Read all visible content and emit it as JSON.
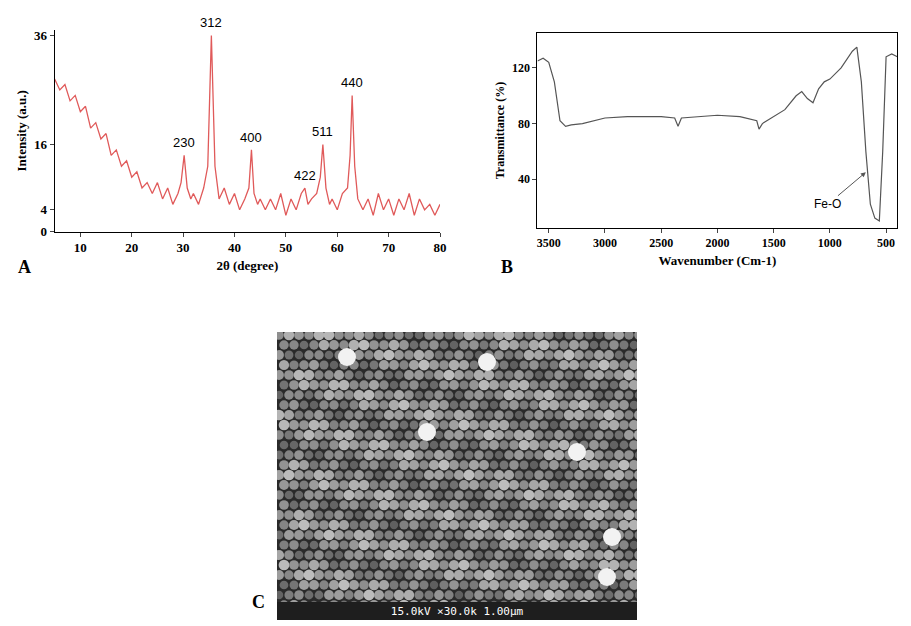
{
  "chart_data": [
    {
      "type": "line",
      "panel": "A",
      "x_label": "2θ (degree)",
      "y_label": "Intensity (a.u.)",
      "x": [
        5,
        6,
        7,
        8,
        9,
        10,
        11,
        12,
        13,
        14,
        15,
        16,
        17,
        18,
        19,
        20,
        21,
        22,
        23,
        24,
        25,
        26,
        27,
        28,
        29,
        29.6,
        30.2,
        30.8,
        31.5,
        32,
        33,
        34,
        34.8,
        35.5,
        36.2,
        37,
        38,
        39,
        40,
        41,
        42,
        42.8,
        43.3,
        43.8,
        44.5,
        45,
        46,
        47,
        48,
        49,
        50,
        51,
        52,
        53,
        53.7,
        54.3,
        55,
        56,
        56.7,
        57.2,
        57.8,
        58.5,
        59,
        60,
        61,
        62,
        62.5,
        62.9,
        63.4,
        64,
        65,
        66,
        67,
        68,
        69,
        70,
        71,
        72,
        73,
        74,
        75,
        76,
        77,
        78,
        79,
        80
      ],
      "values": [
        28,
        26,
        27,
        24,
        25,
        22,
        23,
        19,
        20,
        17,
        18,
        14,
        15,
        12,
        13,
        10,
        11,
        8,
        9,
        7,
        9,
        6,
        8,
        5,
        7,
        9,
        14,
        8,
        6,
        7,
        5,
        8,
        12,
        36,
        12,
        6,
        8,
        5,
        7,
        4,
        6,
        8,
        15,
        7,
        5,
        6,
        4,
        6,
        4,
        7,
        3,
        6,
        4,
        7,
        8,
        5,
        6,
        7,
        10,
        16,
        8,
        5,
        6,
        4,
        7,
        8,
        14,
        25,
        12,
        6,
        4,
        6,
        3,
        7,
        4,
        6,
        3,
        6,
        4,
        7,
        3,
        6,
        4,
        5,
        3,
        5
      ],
      "color": "#e05a5a",
      "xlim": [
        5,
        80
      ],
      "xticks": [
        10,
        20,
        30,
        40,
        50,
        60,
        70,
        80
      ],
      "ylim": [
        0,
        37
      ],
      "yticks": [
        0,
        4,
        16,
        36
      ],
      "grid": false,
      "annotations": [
        {
          "text": "230",
          "x": 30.2,
          "y": 14
        },
        {
          "text": "312",
          "x": 35.5,
          "y": 36
        },
        {
          "text": "400",
          "x": 43.3,
          "y": 15
        },
        {
          "text": "422",
          "x": 53.7,
          "y": 8
        },
        {
          "text": "511",
          "x": 57.2,
          "y": 16
        },
        {
          "text": "440",
          "x": 62.9,
          "y": 25
        }
      ]
    },
    {
      "type": "line",
      "panel": "B",
      "x_label": "Wavenumber (Cm-1)",
      "y_label": "Transmittance (%)",
      "x": [
        3600,
        3550,
        3500,
        3450,
        3400,
        3350,
        3300,
        3200,
        3000,
        2800,
        2500,
        2380,
        2350,
        2320,
        2000,
        1800,
        1650,
        1630,
        1600,
        1500,
        1400,
        1300,
        1250,
        1200,
        1150,
        1100,
        1050,
        1000,
        900,
        800,
        760,
        720,
        680,
        640,
        600,
        560,
        530,
        500,
        450,
        400
      ],
      "values": [
        125,
        127,
        124,
        110,
        82,
        78,
        79,
        80,
        84,
        85,
        85,
        84,
        78,
        84,
        86,
        85,
        82,
        76,
        80,
        85,
        90,
        100,
        103,
        98,
        95,
        105,
        110,
        112,
        120,
        132,
        135,
        110,
        60,
        22,
        12,
        10,
        60,
        128,
        130,
        128
      ],
      "color": "#555555",
      "xlim": [
        3600,
        400
      ],
      "xticks": [
        3500,
        3000,
        2500,
        2000,
        1500,
        1000,
        500
      ],
      "ylim": [
        5,
        145
      ],
      "yticks": [
        40,
        80,
        120
      ],
      "grid": false,
      "annotations": [
        {
          "text": "Fe-O",
          "x": 680,
          "y": 45
        }
      ]
    }
  ],
  "image": {
    "panel": "C",
    "caption": "15.0kV ×30.0k 1.00μm"
  }
}
